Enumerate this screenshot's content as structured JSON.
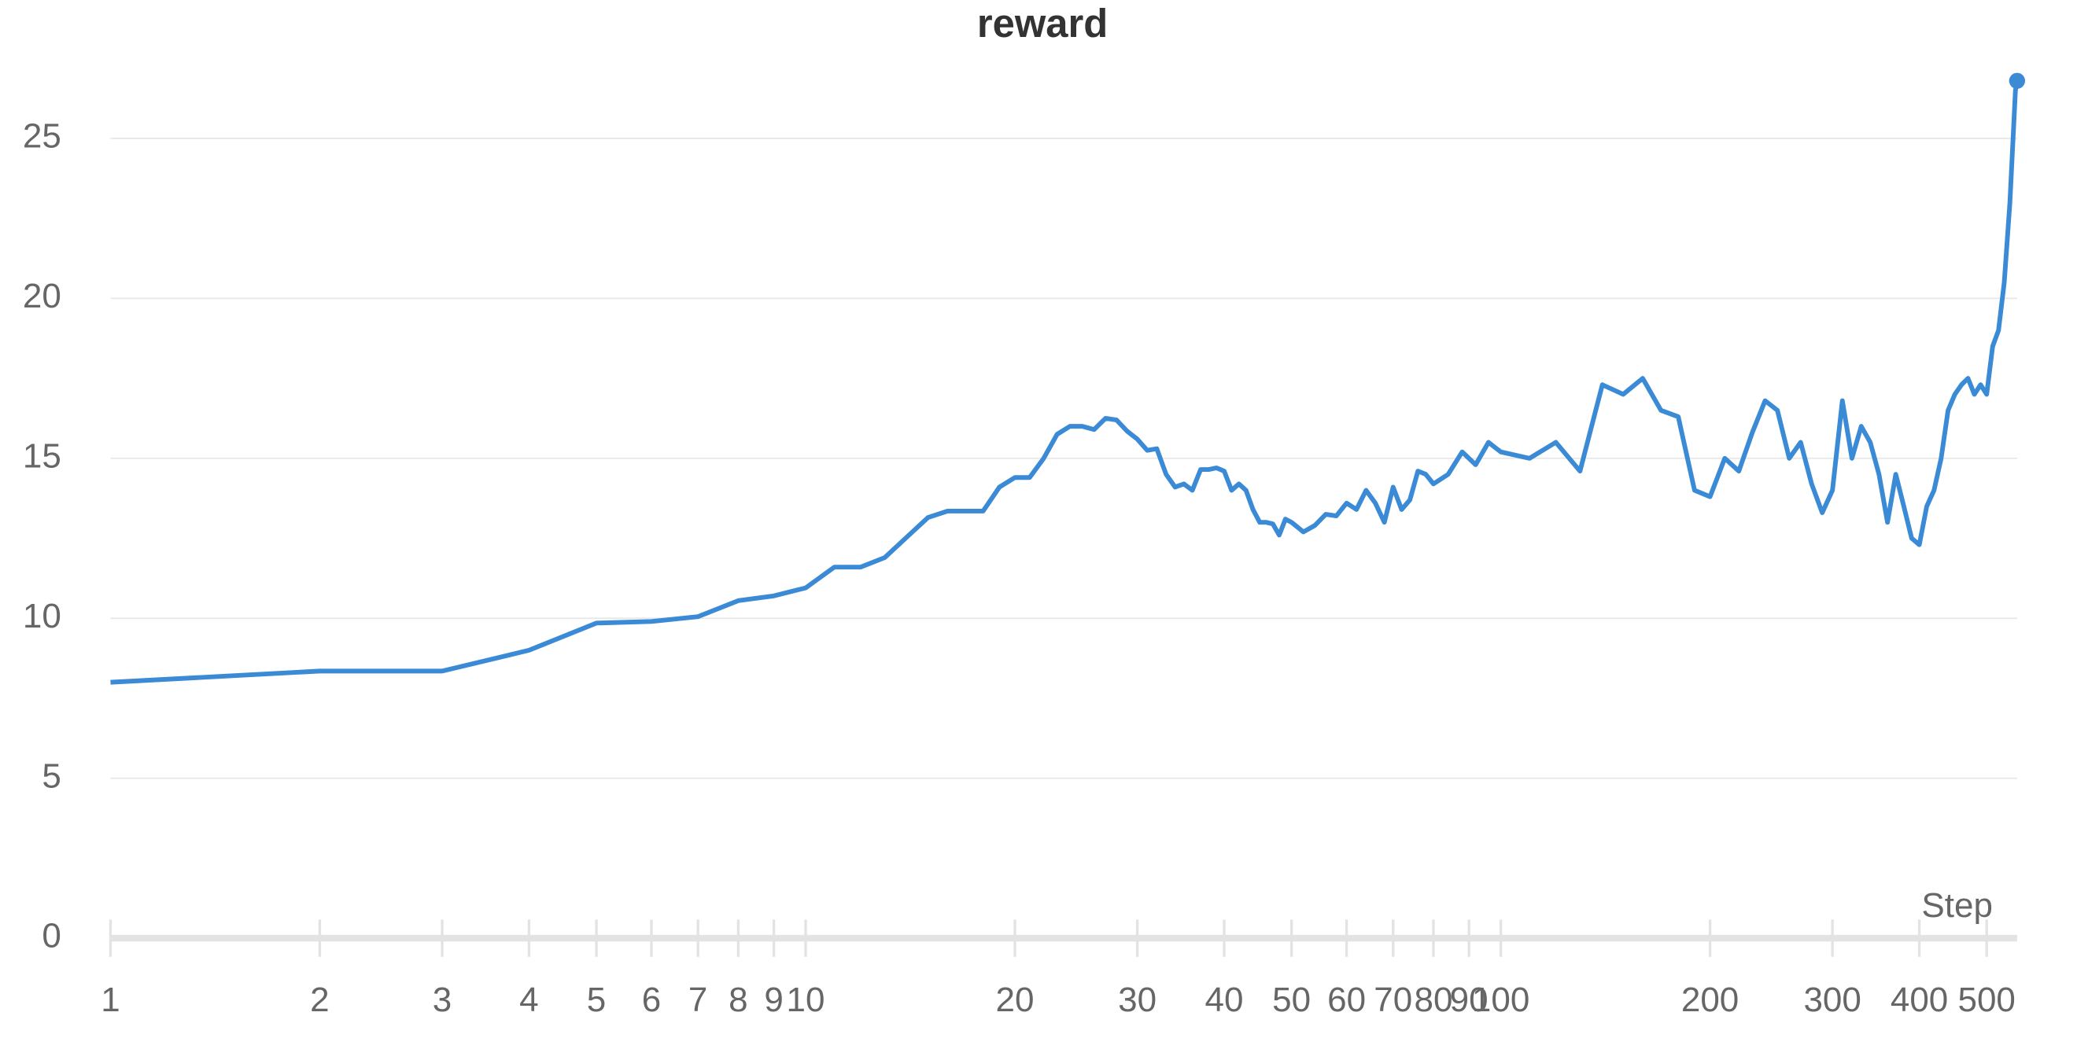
{
  "chart_data": {
    "type": "line",
    "title": "reward",
    "x_label": "Step",
    "x_log": true,
    "grid": true,
    "color": "#3a8ad6",
    "x": [
      1,
      2,
      3,
      4,
      5,
      6,
      7,
      8,
      9,
      10,
      11,
      12,
      13,
      14,
      15,
      16,
      17,
      18,
      19,
      20,
      21,
      22,
      23,
      24,
      25,
      26,
      27,
      28,
      29,
      30,
      31,
      32,
      33,
      34,
      35,
      36,
      37,
      38,
      39,
      40,
      41,
      42,
      43,
      44,
      45,
      46,
      47,
      48,
      49,
      50,
      52,
      54,
      56,
      58,
      60,
      62,
      64,
      66,
      68,
      70,
      72,
      74,
      76,
      78,
      80,
      84,
      88,
      92,
      96,
      100,
      110,
      120,
      130,
      140,
      150,
      160,
      170,
      180,
      190,
      200,
      210,
      220,
      230,
      240,
      250,
      260,
      270,
      280,
      290,
      300,
      310,
      320,
      330,
      340,
      350,
      360,
      370,
      380,
      390,
      400,
      410,
      420,
      430,
      440,
      450,
      460,
      470,
      480,
      490,
      500,
      510,
      520,
      530,
      540,
      550,
      553
    ],
    "values": [
      8.0,
      8.35,
      8.35,
      9.0,
      9.85,
      9.9,
      10.05,
      10.55,
      10.7,
      10.95,
      11.6,
      11.6,
      11.9,
      12.55,
      13.15,
      13.35,
      13.35,
      13.35,
      14.1,
      14.4,
      14.4,
      15.0,
      15.75,
      16.0,
      16.0,
      15.9,
      16.25,
      16.2,
      15.85,
      15.6,
      15.25,
      15.3,
      14.5,
      14.1,
      14.2,
      14.0,
      14.65,
      14.65,
      14.7,
      14.6,
      14.0,
      14.2,
      14.0,
      13.4,
      13.0,
      13.0,
      12.95,
      12.6,
      13.1,
      13.0,
      12.7,
      12.9,
      13.25,
      13.2,
      13.6,
      13.4,
      14.0,
      13.6,
      13.0,
      14.1,
      13.4,
      13.7,
      14.6,
      14.5,
      14.2,
      14.5,
      15.2,
      14.8,
      15.5,
      15.2,
      15.0,
      15.5,
      14.6,
      17.3,
      17.0,
      17.5,
      16.5,
      16.3,
      14.0,
      13.8,
      15.0,
      14.6,
      15.8,
      16.8,
      16.5,
      15.0,
      15.5,
      14.2,
      13.3,
      14.0,
      16.8,
      15.0,
      16.0,
      15.5,
      14.5,
      13.0,
      14.5,
      13.5,
      12.5,
      12.3,
      13.5,
      14.0,
      15.0,
      16.5,
      17.0,
      17.3,
      17.5,
      17.0,
      17.3,
      17.0,
      18.5,
      19.0,
      20.5,
      23.0,
      26.5,
      26.8
    ],
    "xlim": [
      1,
      553
    ],
    "xticks": [
      1,
      2,
      3,
      4,
      5,
      6,
      7,
      8,
      9,
      10,
      20,
      30,
      40,
      50,
      60,
      70,
      80,
      90,
      100,
      200,
      300,
      400,
      500
    ],
    "ylim": [
      0,
      27
    ],
    "yticks": [
      0,
      5,
      10,
      15,
      20,
      25
    ]
  }
}
